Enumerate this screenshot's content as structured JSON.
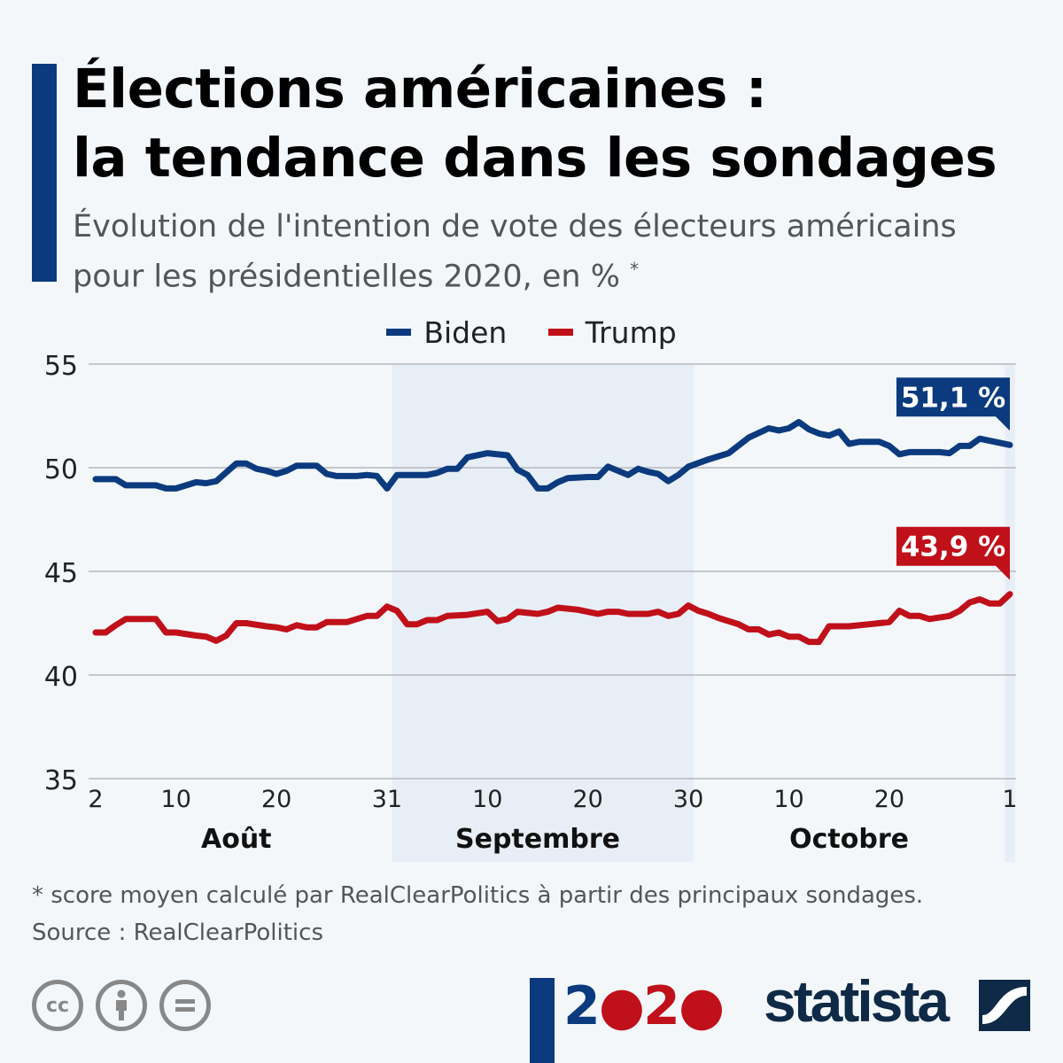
{
  "title_line1": "Élections américaines :",
  "title_line2": "la tendance dans les sondages",
  "subtitle_line1": "Évolution de l'intention de vote des électeurs américains",
  "subtitle_line2": "pour les présidentielles 2020, en %",
  "subtitle_asterisk": "*",
  "footnote": "* score moyen calculé par RealClearPolitics à partir des principaux sondages.",
  "source": "Source : RealClearPolitics",
  "logo_year": "2020",
  "brand": "statista",
  "license_icons": [
    "creative-commons-icon",
    "attribution-icon",
    "no-derivatives-icon"
  ],
  "chart_data": {
    "type": "line",
    "ylim": [
      35,
      55
    ],
    "xlim": [
      "2020-08-02",
      "2020-11-01"
    ],
    "yticks": [
      "55",
      "50",
      "45",
      "40",
      "35"
    ],
    "ytick_values": [
      55,
      50,
      45,
      40,
      35
    ],
    "xticks": [
      {
        "label": "2",
        "date": "2020-08-02"
      },
      {
        "label": "10",
        "date": "2020-08-10"
      },
      {
        "label": "20",
        "date": "2020-08-20"
      },
      {
        "label": "31",
        "date": "2020-08-31"
      },
      {
        "label": "10",
        "date": "2020-09-10"
      },
      {
        "label": "20",
        "date": "2020-09-20"
      },
      {
        "label": "30",
        "date": "2020-09-30"
      },
      {
        "label": "10",
        "date": "2020-10-10"
      },
      {
        "label": "20",
        "date": "2020-10-20"
      },
      {
        "label": "1",
        "date": "2020-11-01"
      }
    ],
    "months": [
      {
        "label": "Août",
        "center": "2020-08-16"
      },
      {
        "label": "Septembre",
        "center": "2020-09-15"
      },
      {
        "label": "Octobre",
        "center": "2020-10-16"
      }
    ],
    "shaded_periods": [
      [
        "2020-09-01",
        "2020-09-30"
      ],
      [
        "2020-11-01",
        "2020-11-01"
      ]
    ],
    "grid": true,
    "legend": "top-center",
    "series": [
      {
        "name": "Biden",
        "color": "#0b3a7e",
        "end_label": "51,1 %",
        "points": [
          [
            "2020-08-02",
            49.45
          ],
          [
            "2020-08-04",
            49.45
          ],
          [
            "2020-08-05",
            49.15
          ],
          [
            "2020-08-08",
            49.15
          ],
          [
            "2020-08-09",
            49.0
          ],
          [
            "2020-08-10",
            49.0
          ],
          [
            "2020-08-12",
            49.3
          ],
          [
            "2020-08-13",
            49.25
          ],
          [
            "2020-08-14",
            49.35
          ],
          [
            "2020-08-16",
            50.2
          ],
          [
            "2020-08-17",
            50.2
          ],
          [
            "2020-08-18",
            49.95
          ],
          [
            "2020-08-19",
            49.85
          ],
          [
            "2020-08-20",
            49.7
          ],
          [
            "2020-08-21",
            49.85
          ],
          [
            "2020-08-22",
            50.1
          ],
          [
            "2020-08-24",
            50.1
          ],
          [
            "2020-08-25",
            49.7
          ],
          [
            "2020-08-26",
            49.6
          ],
          [
            "2020-08-28",
            49.6
          ],
          [
            "2020-08-29",
            49.65
          ],
          [
            "2020-08-30",
            49.6
          ],
          [
            "2020-08-31",
            49.0
          ],
          [
            "2020-09-01",
            49.65
          ],
          [
            "2020-09-04",
            49.65
          ],
          [
            "2020-09-05",
            49.75
          ],
          [
            "2020-09-06",
            49.95
          ],
          [
            "2020-09-07",
            49.95
          ],
          [
            "2020-09-08",
            50.5
          ],
          [
            "2020-09-10",
            50.7
          ],
          [
            "2020-09-12",
            50.6
          ],
          [
            "2020-09-13",
            49.9
          ],
          [
            "2020-09-14",
            49.65
          ],
          [
            "2020-09-15",
            49.0
          ],
          [
            "2020-09-16",
            49.0
          ],
          [
            "2020-09-17",
            49.3
          ],
          [
            "2020-09-18",
            49.5
          ],
          [
            "2020-09-20",
            49.55
          ],
          [
            "2020-09-21",
            49.55
          ],
          [
            "2020-09-22",
            50.05
          ],
          [
            "2020-09-24",
            49.65
          ],
          [
            "2020-09-25",
            49.95
          ],
          [
            "2020-09-26",
            49.8
          ],
          [
            "2020-09-27",
            49.7
          ],
          [
            "2020-09-28",
            49.35
          ],
          [
            "2020-09-29",
            49.65
          ],
          [
            "2020-09-30",
            50.05
          ],
          [
            "2020-10-02",
            50.4
          ],
          [
            "2020-10-03",
            50.55
          ],
          [
            "2020-10-04",
            50.7
          ],
          [
            "2020-10-06",
            51.45
          ],
          [
            "2020-10-08",
            51.9
          ],
          [
            "2020-10-09",
            51.8
          ],
          [
            "2020-10-10",
            51.9
          ],
          [
            "2020-10-11",
            52.2
          ],
          [
            "2020-10-12",
            51.85
          ],
          [
            "2020-10-13",
            51.65
          ],
          [
            "2020-10-14",
            51.55
          ],
          [
            "2020-10-15",
            51.75
          ],
          [
            "2020-10-16",
            51.15
          ],
          [
            "2020-10-17",
            51.25
          ],
          [
            "2020-10-19",
            51.25
          ],
          [
            "2020-10-20",
            51.05
          ],
          [
            "2020-10-21",
            50.65
          ],
          [
            "2020-10-22",
            50.75
          ],
          [
            "2020-10-25",
            50.75
          ],
          [
            "2020-10-26",
            50.7
          ],
          [
            "2020-10-27",
            51.05
          ],
          [
            "2020-10-28",
            51.05
          ],
          [
            "2020-10-29",
            51.4
          ],
          [
            "2020-10-30",
            51.3
          ],
          [
            "2020-11-01",
            51.1
          ]
        ]
      },
      {
        "name": "Trump",
        "color": "#c0101a",
        "end_label": "43,9 %",
        "points": [
          [
            "2020-08-02",
            42.05
          ],
          [
            "2020-08-03",
            42.05
          ],
          [
            "2020-08-04",
            42.4
          ],
          [
            "2020-08-05",
            42.7
          ],
          [
            "2020-08-08",
            42.7
          ],
          [
            "2020-08-09",
            42.05
          ],
          [
            "2020-08-10",
            42.05
          ],
          [
            "2020-08-12",
            41.9
          ],
          [
            "2020-08-13",
            41.85
          ],
          [
            "2020-08-14",
            41.65
          ],
          [
            "2020-08-15",
            41.9
          ],
          [
            "2020-08-16",
            42.5
          ],
          [
            "2020-08-17",
            42.5
          ],
          [
            "2020-08-19",
            42.35
          ],
          [
            "2020-08-20",
            42.3
          ],
          [
            "2020-08-21",
            42.2
          ],
          [
            "2020-08-22",
            42.4
          ],
          [
            "2020-08-23",
            42.3
          ],
          [
            "2020-08-24",
            42.3
          ],
          [
            "2020-08-25",
            42.55
          ],
          [
            "2020-08-27",
            42.55
          ],
          [
            "2020-08-28",
            42.7
          ],
          [
            "2020-08-29",
            42.85
          ],
          [
            "2020-08-30",
            42.85
          ],
          [
            "2020-08-31",
            43.3
          ],
          [
            "2020-09-01",
            43.1
          ],
          [
            "2020-09-02",
            42.45
          ],
          [
            "2020-09-03",
            42.45
          ],
          [
            "2020-09-04",
            42.65
          ],
          [
            "2020-09-05",
            42.65
          ],
          [
            "2020-09-06",
            42.85
          ],
          [
            "2020-09-08",
            42.9
          ],
          [
            "2020-09-10",
            43.05
          ],
          [
            "2020-09-11",
            42.6
          ],
          [
            "2020-09-12",
            42.7
          ],
          [
            "2020-09-13",
            43.05
          ],
          [
            "2020-09-15",
            42.95
          ],
          [
            "2020-09-16",
            43.05
          ],
          [
            "2020-09-17",
            43.25
          ],
          [
            "2020-09-19",
            43.15
          ],
          [
            "2020-09-21",
            42.95
          ],
          [
            "2020-09-22",
            43.05
          ],
          [
            "2020-09-23",
            43.05
          ],
          [
            "2020-09-24",
            42.95
          ],
          [
            "2020-09-26",
            42.95
          ],
          [
            "2020-09-27",
            43.05
          ],
          [
            "2020-09-28",
            42.85
          ],
          [
            "2020-09-29",
            42.95
          ],
          [
            "2020-09-30",
            43.35
          ],
          [
            "2020-10-01",
            43.1
          ],
          [
            "2020-10-02",
            42.95
          ],
          [
            "2020-10-03",
            42.75
          ],
          [
            "2020-10-05",
            42.45
          ],
          [
            "2020-10-06",
            42.2
          ],
          [
            "2020-10-07",
            42.2
          ],
          [
            "2020-10-08",
            41.95
          ],
          [
            "2020-10-09",
            42.05
          ],
          [
            "2020-10-10",
            41.85
          ],
          [
            "2020-10-11",
            41.85
          ],
          [
            "2020-10-12",
            41.6
          ],
          [
            "2020-10-13",
            41.6
          ],
          [
            "2020-10-14",
            42.35
          ],
          [
            "2020-10-16",
            42.35
          ],
          [
            "2020-10-18",
            42.45
          ],
          [
            "2020-10-19",
            42.5
          ],
          [
            "2020-10-20",
            42.55
          ],
          [
            "2020-10-21",
            43.1
          ],
          [
            "2020-10-22",
            42.85
          ],
          [
            "2020-10-23",
            42.85
          ],
          [
            "2020-10-24",
            42.7
          ],
          [
            "2020-10-26",
            42.85
          ],
          [
            "2020-10-27",
            43.1
          ],
          [
            "2020-10-28",
            43.5
          ],
          [
            "2020-10-29",
            43.65
          ],
          [
            "2020-10-30",
            43.45
          ],
          [
            "2020-10-31",
            43.45
          ],
          [
            "2020-11-01",
            43.9
          ]
        ]
      }
    ]
  }
}
